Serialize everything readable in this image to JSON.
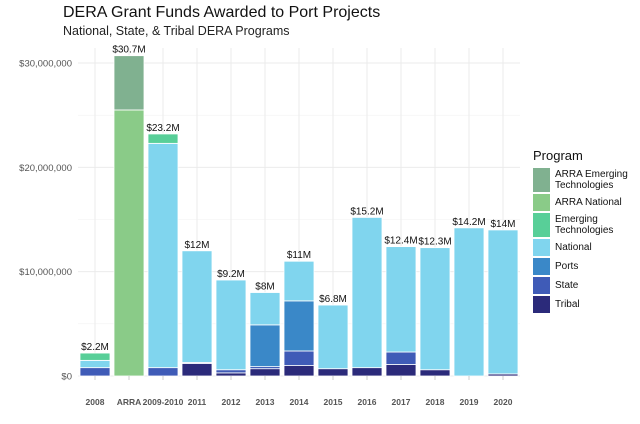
{
  "chart_data": {
    "type": "bar",
    "stacked": true,
    "title": "DERA Grant Funds Awarded to Port Projects",
    "subtitle": "National, State, & Tribal DERA Programs",
    "xlabel": "",
    "ylabel": "",
    "ylim": [
      0,
      32000000
    ],
    "yticks": [
      0,
      10000000,
      20000000,
      30000000
    ],
    "ytick_labels": [
      "$0",
      "$10,000,000",
      "$20,000,000",
      "$30,000,000"
    ],
    "grid": true,
    "legend_title": "Program",
    "legend_position": "right",
    "categories": [
      "2008",
      "ARRA",
      "2009-2010",
      "2011",
      "2012",
      "2013",
      "2014",
      "2015",
      "2016",
      "2017",
      "2018",
      "2019",
      "2020"
    ],
    "total_labels": [
      "$2.2M",
      "$30.7M",
      "$23.2M",
      "$12M",
      "$9.2M",
      "$8M",
      "$11M",
      "$6.8M",
      "$15.2M",
      "$12.4M",
      "$12.3M",
      "$14.2M",
      "$14M"
    ],
    "series": [
      {
        "name": "Tribal",
        "color": "#2b2a7a",
        "values": [
          0,
          0,
          0,
          1200000,
          300000,
          700000,
          1000000,
          700000,
          800000,
          1100000,
          600000,
          0,
          200000
        ]
      },
      {
        "name": "State",
        "color": "#3f5bb7",
        "values": [
          800000,
          0,
          800000,
          100000,
          300000,
          200000,
          1400000,
          0,
          0,
          1200000,
          0,
          0,
          0
        ]
      },
      {
        "name": "Ports",
        "color": "#3a88c8",
        "values": [
          0,
          0,
          0,
          0,
          0,
          4000000,
          4800000,
          0,
          0,
          0,
          0,
          0,
          0
        ]
      },
      {
        "name": "National",
        "color": "#80d5ee",
        "values": [
          700000,
          0,
          21500000,
          10700000,
          8600000,
          3100000,
          3800000,
          6100000,
          14400000,
          10100000,
          11700000,
          14200000,
          13800000
        ]
      },
      {
        "name": "Emerging Technologies",
        "color": "#58cf98",
        "values": [
          700000,
          0,
          900000,
          0,
          0,
          0,
          0,
          0,
          0,
          0,
          0,
          0,
          0
        ]
      },
      {
        "name": "ARRA National",
        "color": "#8acb88",
        "values": [
          0,
          25500000,
          0,
          0,
          0,
          0,
          0,
          0,
          0,
          0,
          0,
          0,
          0
        ]
      },
      {
        "name": "ARRA Emerging Technologies",
        "color": "#80b190",
        "values": [
          0,
          5200000,
          0,
          0,
          0,
          0,
          0,
          0,
          0,
          0,
          0,
          0,
          0
        ]
      }
    ]
  }
}
